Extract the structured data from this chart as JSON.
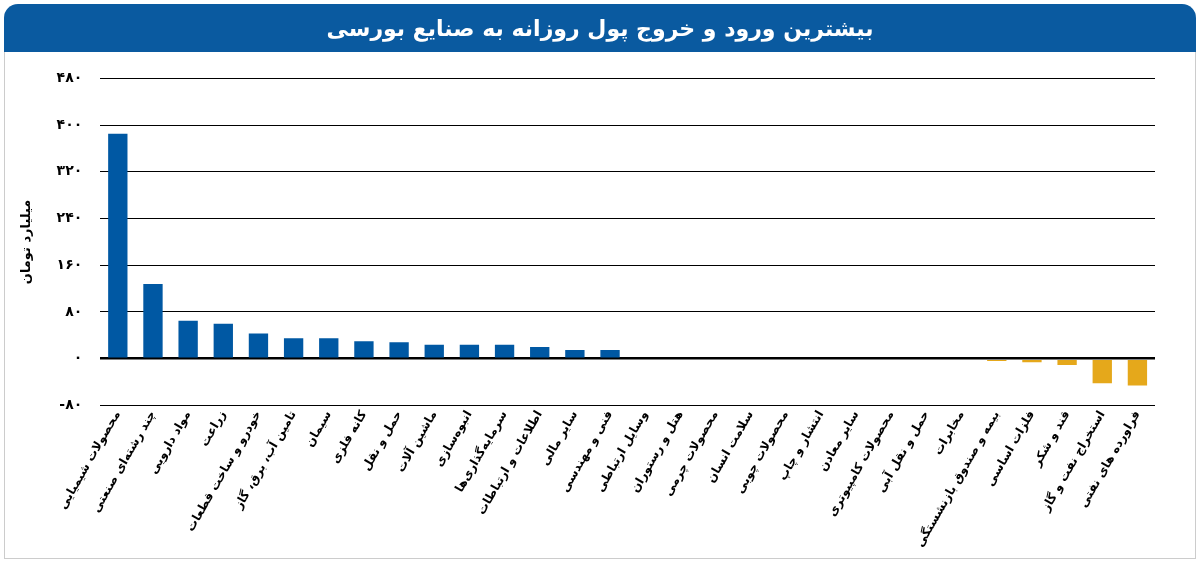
{
  "chart_data": {
    "type": "bar",
    "title": "بیشترین ورود و خروج پول روزانه به صنایع بورسی",
    "ylabel": "میلیارد تومان",
    "categories": [
      "محصولات شیمیایی",
      "چند رشته‌ای صنعتی",
      "مواد دارویی",
      "زراعت",
      "خودرو و ساخت قطعات",
      "تامین آب، برق، گاز",
      "سیمان",
      "کانه فلزی",
      "حمل و نقل",
      "ماشین آلات",
      "انبوه‌سازی",
      "سرمایه‌گذاری‌ها",
      "اطلاعات و ارتباطات",
      "سایر مالی",
      "فنی و مهندسی",
      "وسایل ارتباطی",
      "هتل و رستوران",
      "محصولات چرمی",
      "سلامت انسان",
      "محصولات چوبی",
      "انتشار و چاپ",
      "سایر معادن",
      "محصولات کامپیوتری",
      "حمل و نقل آبی",
      "مخابرات",
      "بیمه و صندوق بازنشستگی",
      "فلزات اساسی",
      "قند و شکر",
      "استخراج نفت و گاز",
      "فراورده های نفتی"
    ],
    "values": [
      385,
      128,
      65,
      60,
      43,
      35,
      35,
      30,
      28,
      24,
      24,
      24,
      20,
      15,
      15,
      0,
      0,
      0,
      0,
      0,
      0,
      0,
      0,
      0,
      0,
      -4,
      -6,
      -11,
      -42,
      -46
    ],
    "colors": [
      "#0058a3",
      "#0058a3",
      "#0058a3",
      "#0058a3",
      "#0058a3",
      "#0058a3",
      "#0058a3",
      "#0058a3",
      "#0058a3",
      "#0058a3",
      "#0058a3",
      "#0058a3",
      "#0058a3",
      "#0058a3",
      "#0058a3",
      "#0058a3",
      "#0058a3",
      "#0058a3",
      "#0058a3",
      "#0058a3",
      "#0058a3",
      "#0058a3",
      "#0058a3",
      "#0058a3",
      "#0058a3",
      "#e5a81b",
      "#e5a81b",
      "#e5a81b",
      "#e5a81b",
      "#e5a81b"
    ],
    "ylim": [
      -80,
      480
    ],
    "yticks": [
      {
        "value": -80,
        "label": "-۸۰"
      },
      {
        "value": 0,
        "label": "۰"
      },
      {
        "value": 80,
        "label": "۸۰"
      },
      {
        "value": 160,
        "label": "۱۶۰"
      },
      {
        "value": 240,
        "label": "۲۴۰"
      },
      {
        "value": 320,
        "label": "۳۲۰"
      },
      {
        "value": 400,
        "label": "۴۰۰"
      },
      {
        "value": 480,
        "label": "۴۸۰"
      }
    ],
    "grid": "y",
    "legend": false
  }
}
